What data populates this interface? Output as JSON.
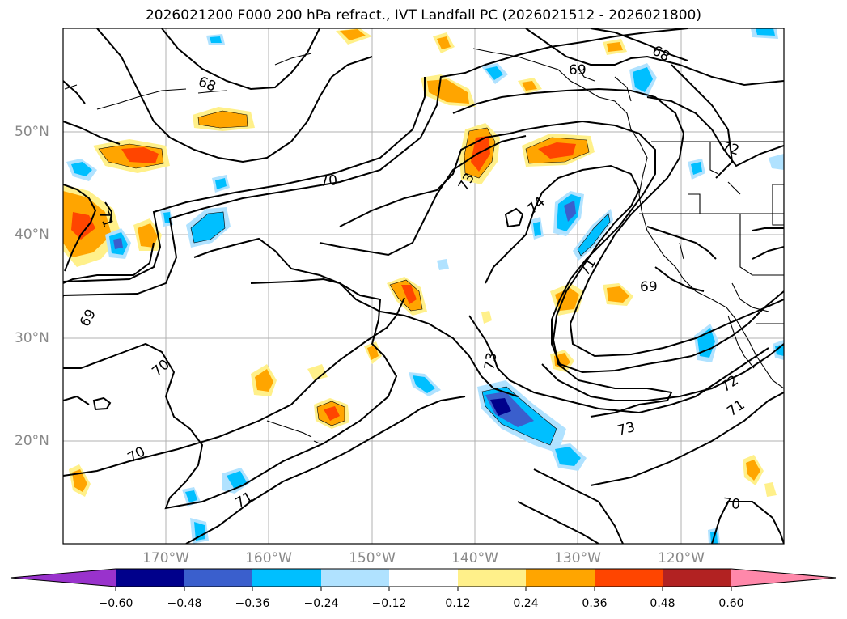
{
  "title": "2026021200 F000 200 hPa refract., IVT Landfall PC (2026021512 - 2026021800)",
  "lat_labels": [
    "50°N",
    "40°N",
    "30°N",
    "20°N"
  ],
  "lon_labels": [
    "170°W",
    "160°W",
    "150°W",
    "140°W",
    "130°W",
    "120°W"
  ],
  "contour_labels": [
    "68",
    "68",
    "69",
    "69",
    "69",
    "70",
    "70",
    "70",
    "70",
    "71",
    "71",
    "71",
    "71",
    "72",
    "72",
    "73",
    "73",
    "73",
    "74"
  ],
  "colorbar": {
    "ticks": [
      "−0.60",
      "−0.48",
      "−0.36",
      "−0.24",
      "−0.12",
      "0.12",
      "0.24",
      "0.36",
      "0.48",
      "0.60"
    ],
    "colors": [
      "#9932cc",
      "#00008b",
      "#3a5fcd",
      "#00bfff",
      "#b0e2ff",
      "#ffffff",
      "#fff08a",
      "#ffa500",
      "#ff4500",
      "#b22222",
      "#ff88aa"
    ]
  },
  "fill_colors": {
    "neg_light": "#b0e2ff",
    "neg_mid": "#00bfff",
    "neg_dark": "#3a5fcd",
    "neg_darkest": "#00008b",
    "pos_light": "#fff08a",
    "pos_mid": "#ffa500",
    "pos_dark": "#ff4500"
  }
}
